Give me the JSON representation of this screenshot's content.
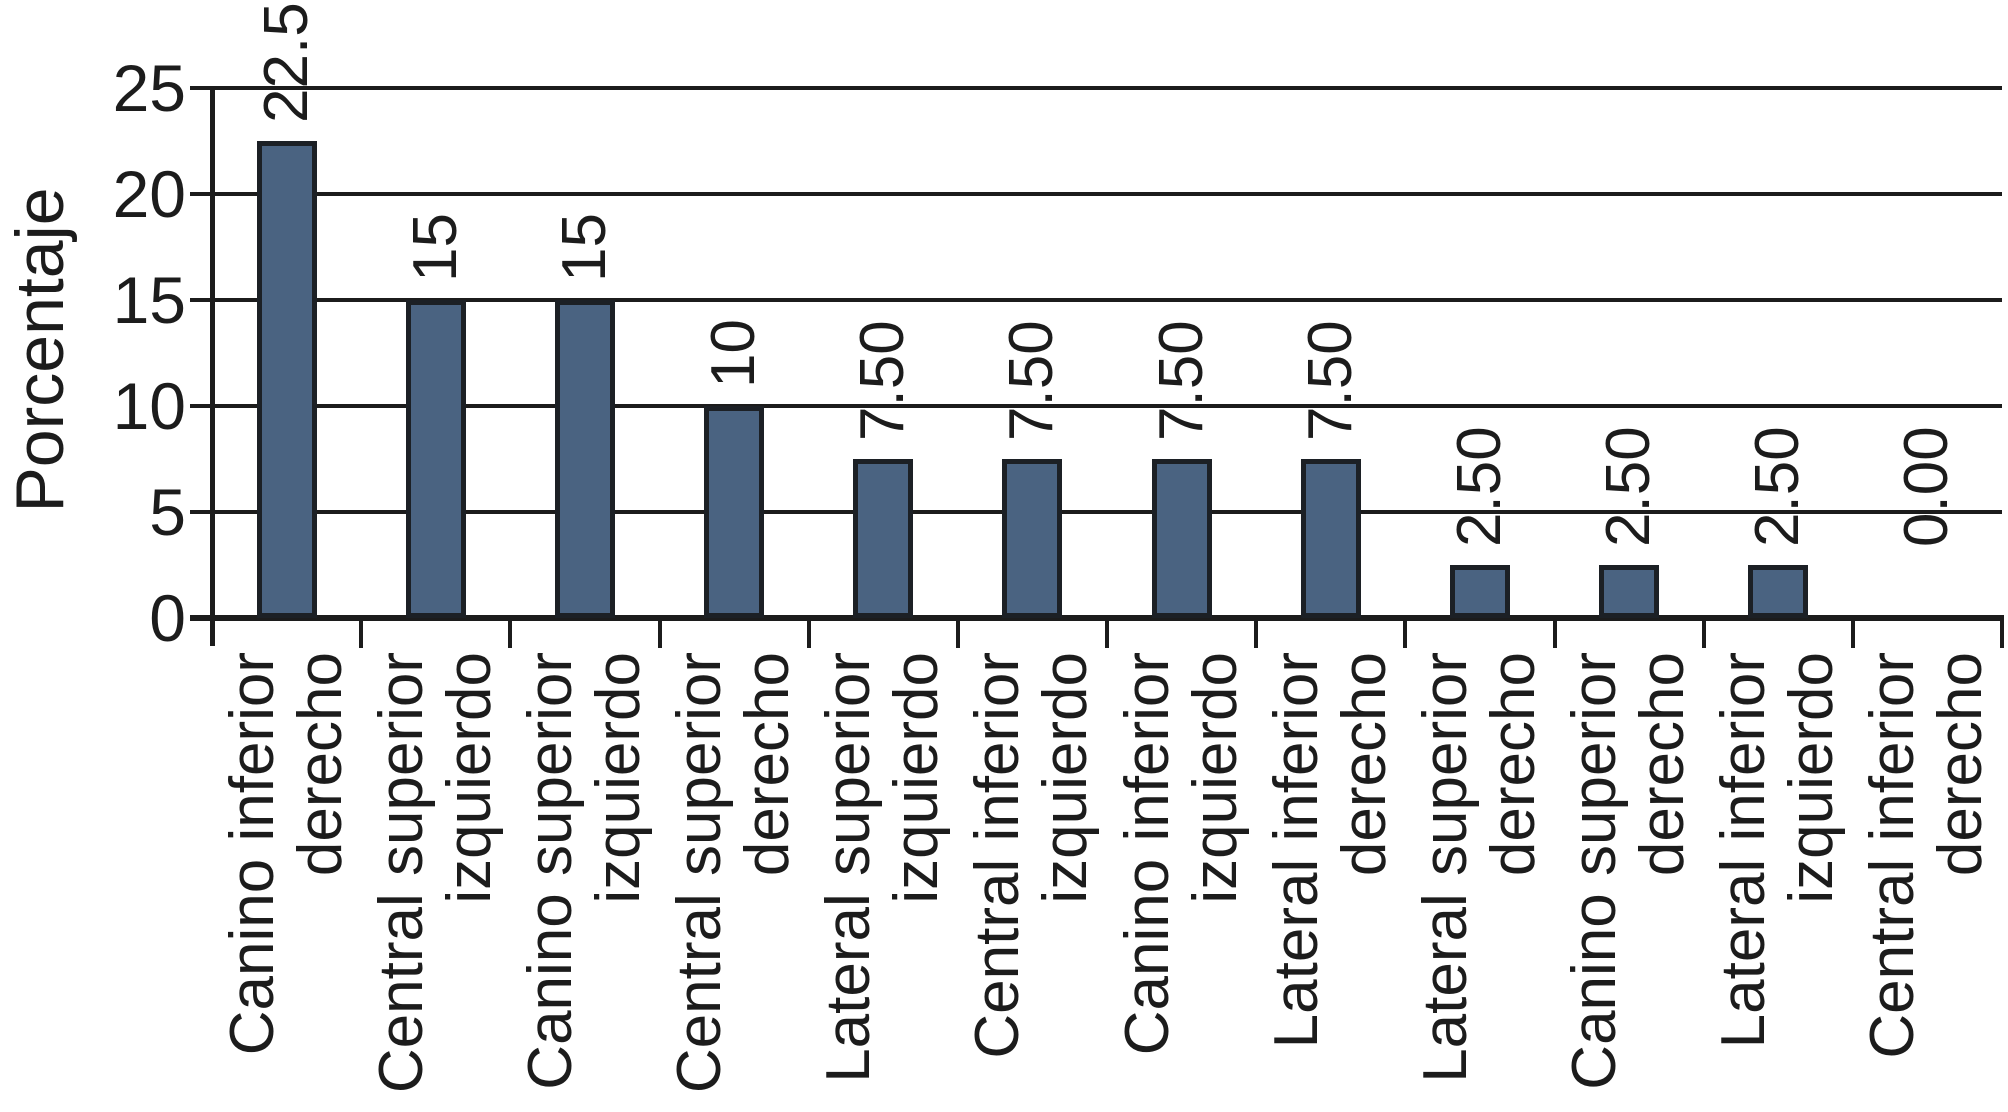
{
  "chart_data": {
    "type": "bar",
    "title": "",
    "xlabel": "",
    "ylabel": "Porcentaje",
    "categories": [
      [
        "Canino inferior",
        "derecho"
      ],
      [
        "Central superior",
        "izquierdo"
      ],
      [
        "Canino superior",
        "izquierdo"
      ],
      [
        "Central superior",
        "derecho"
      ],
      [
        "Lateral superior",
        "izquierdo"
      ],
      [
        "Central inferior",
        "izquierdo"
      ],
      [
        "Canino inferior",
        "izquierdo"
      ],
      [
        "Lateral inferior",
        "derecho"
      ],
      [
        "Lateral superior",
        "derecho"
      ],
      [
        "Canino superior",
        "derecho"
      ],
      [
        "Lateral inferior",
        "izquierdo"
      ],
      [
        "Central inferior",
        "derecho"
      ]
    ],
    "values": [
      22.5,
      15,
      15,
      10,
      7.5,
      7.5,
      7.5,
      7.5,
      2.5,
      2.5,
      2.5,
      0
    ],
    "value_labels": [
      "22.5",
      "15",
      "15",
      "10",
      "7.50",
      "7.50",
      "7.50",
      "7.50",
      "2.50",
      "2.50",
      "2.50",
      "0.00"
    ],
    "y_ticks": [
      0,
      5,
      10,
      15,
      20,
      25
    ],
    "ylim": [
      0,
      25
    ],
    "grid": true,
    "legend_position": "none",
    "bar_color": "#4a6381",
    "bar_border_color": "#1c2025",
    "line_color": "#1c1c1c"
  }
}
